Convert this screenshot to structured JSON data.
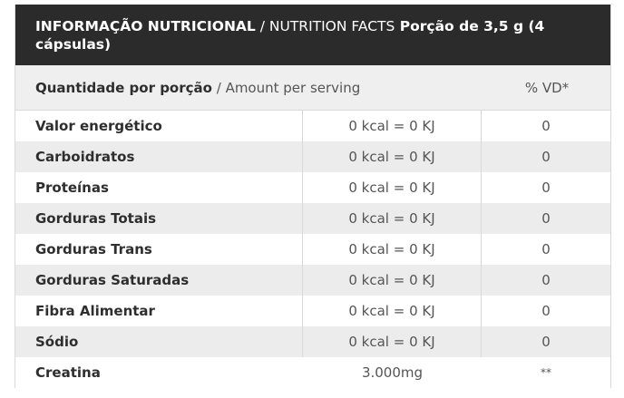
{
  "header": {
    "title_pt": "INFORMAÇÃO NUTRICIONAL",
    "separator": " / ",
    "title_en": "NUTRITION FACTS",
    "portion": " Porção de 3,5 g (4 cápsulas)"
  },
  "subheader": {
    "amount_pt": "Quantidade por porção",
    "separator": " / ",
    "amount_en": "Amount per serving",
    "vd_label": "% VD*"
  },
  "rows": [
    {
      "name": "Valor energético",
      "amount": "0 kcal = 0 KJ",
      "vd": "0"
    },
    {
      "name": "Carboidratos",
      "amount": "0 kcal = 0 KJ",
      "vd": "0"
    },
    {
      "name": "Proteínas",
      "amount": "0 kcal = 0 KJ",
      "vd": "0"
    },
    {
      "name": "Gorduras Totais",
      "amount": "0 kcal = 0 KJ",
      "vd": "0"
    },
    {
      "name": "Gorduras Trans",
      "amount": "0 kcal = 0 KJ",
      "vd": "0"
    },
    {
      "name": "Gorduras Saturadas",
      "amount": "0 kcal = 0 KJ",
      "vd": "0"
    },
    {
      "name": "Fibra Alimentar",
      "amount": "0 kcal = 0 KJ",
      "vd": "0"
    },
    {
      "name": "Sódio",
      "amount": "0 kcal = 0 KJ",
      "vd": "0"
    },
    {
      "name": "Creatina",
      "amount": "3.000mg",
      "vd": "**"
    }
  ],
  "colors": {
    "header_bg": "#2b2b2b",
    "alt_row_bg": "#ececec",
    "border": "#d9d9d9"
  }
}
